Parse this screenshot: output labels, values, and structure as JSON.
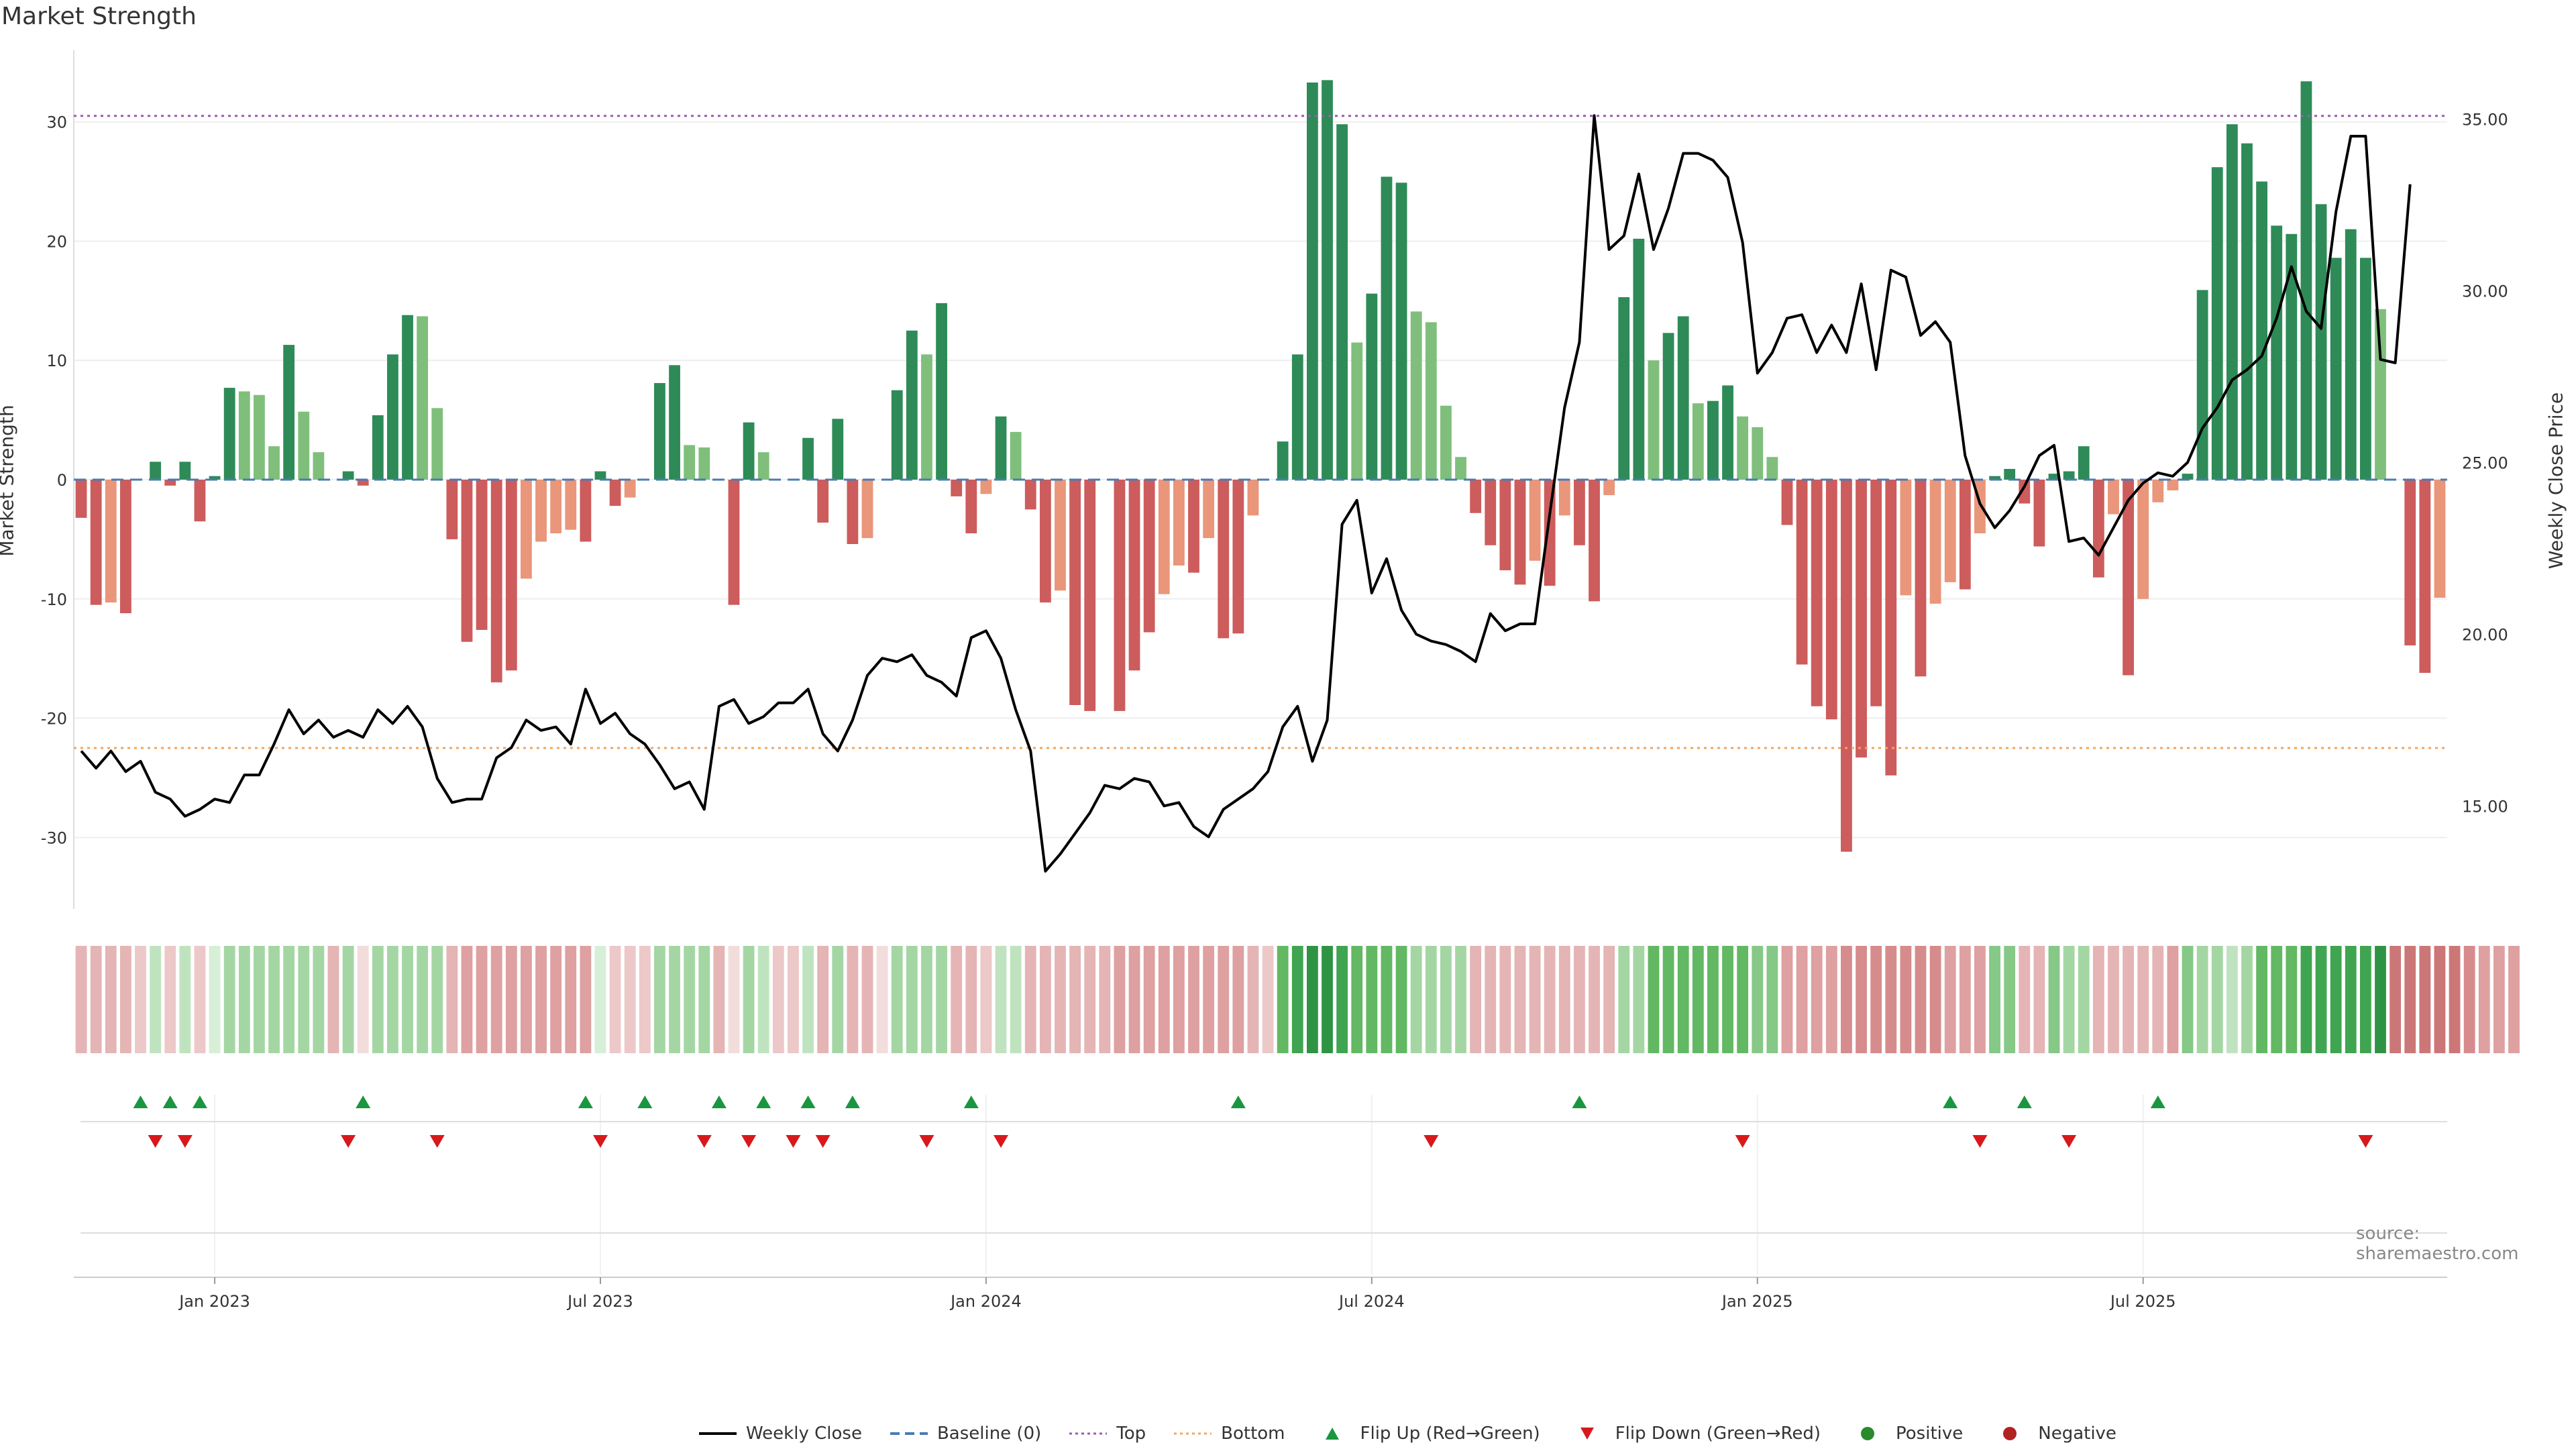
{
  "title": "Market Strength",
  "y_left_label": "Market Strength",
  "y_right_label": "Weekly Close Price",
  "source": "source: sharemaestro.com",
  "colors": {
    "strong_green": "#2e8b57",
    "light_green": "#7fbf7b",
    "strong_red": "#cd5c5c",
    "light_red": "#e9967a",
    "price": "#000000",
    "baseline": "#4a7bb5",
    "top": "#9b59b6",
    "bottom": "#f4a460",
    "flip_up": "#1a9641",
    "flip_down": "#d7191c",
    "positive": "#2b8a2b",
    "negative": "#b22222"
  },
  "legend": [
    {
      "label": "Weekly Close",
      "kind": "line",
      "color": "#000000"
    },
    {
      "label": "Baseline (0)",
      "kind": "dash",
      "color": "#4a7bb5"
    },
    {
      "label": "Top",
      "kind": "dot",
      "color": "#9b59b6"
    },
    {
      "label": "Bottom",
      "kind": "dot",
      "color": "#f4a460"
    },
    {
      "label": "Flip Up (Red→Green)",
      "kind": "tri-up",
      "color": "#1a9641"
    },
    {
      "label": "Flip Down (Green→Red)",
      "kind": "tri-down",
      "color": "#d7191c"
    },
    {
      "label": "Positive",
      "kind": "circle",
      "color": "#2b8a2b"
    },
    {
      "label": "Negative",
      "kind": "circle",
      "color": "#b22222"
    }
  ],
  "chart_data": {
    "type": "bar",
    "title": "Market Strength",
    "ylabel": "Market Strength",
    "y2label": "Weekly Close Price",
    "ylim": [
      -36,
      36
    ],
    "y2lim": [
      12,
      37
    ],
    "yticks": [
      -30,
      -20,
      -10,
      0,
      10,
      20,
      30
    ],
    "y2ticks": [
      "15.00",
      "20.00",
      "25.00",
      "30.00",
      "35.00"
    ],
    "top_level": 30.5,
    "bottom_level": -22.5,
    "x_ticks": [
      "Jan 2023",
      "Jul 2023",
      "Jan 2024",
      "Jul 2024",
      "Jan 2025",
      "Jul 2025"
    ],
    "x_tick_weeks": [
      9,
      35,
      61,
      87,
      113,
      139
    ],
    "strength": [
      -3.2,
      -10.5,
      -10.3,
      -11.2,
      0,
      1.5,
      -0.5,
      1.5,
      -3.5,
      0.3,
      7.7,
      7.4,
      7.1,
      2.8,
      11.3,
      5.7,
      2.3,
      0,
      0.7,
      -0.5,
      5.4,
      10.5,
      13.8,
      13.7,
      6.0,
      -5.0,
      -13.6,
      -12.6,
      -17.0,
      -16.0,
      -8.3,
      -5.2,
      -4.5,
      -4.2,
      -5.2,
      0.7,
      -2.2,
      -1.5,
      0,
      8.1,
      9.6,
      2.9,
      2.7,
      0,
      -10.5,
      4.8,
      2.3,
      0,
      0,
      3.5,
      -3.6,
      5.1,
      -5.4,
      -4.9,
      0,
      7.5,
      12.5,
      10.5,
      14.8,
      -1.4,
      -4.5,
      -1.2,
      5.3,
      4.0,
      -2.5,
      -10.3,
      -9.3,
      -18.9,
      -19.4,
      0,
      -19.4,
      -16.0,
      -12.8,
      -9.6,
      -7.2,
      -7.8,
      -4.9,
      -13.3,
      -12.9,
      -3.0,
      0,
      3.2,
      10.5,
      33.3,
      33.5,
      29.8,
      11.5,
      15.6,
      25.4,
      24.9,
      14.1,
      13.2,
      6.2,
      1.9,
      -2.8,
      -5.5,
      -7.6,
      -8.8,
      -6.8,
      -8.9,
      -3.0,
      -5.5,
      -10.2,
      -1.3,
      15.3,
      20.2,
      10.0,
      12.3,
      13.7,
      6.4,
      6.6,
      7.9,
      5.3,
      4.4,
      1.9,
      -3.8,
      -15.5,
      -19.0,
      -20.1,
      -31.2,
      -23.3,
      -19.0,
      -24.8,
      -9.7,
      -16.5,
      -10.4,
      -8.6,
      -9.2,
      -4.5,
      0.3,
      0.9,
      -2.0,
      -5.6,
      0.5,
      0.7,
      2.8,
      -8.2,
      -2.9,
      -16.4,
      -10.0,
      -1.9,
      -0.9,
      0.5,
      15.9,
      26.2,
      29.8,
      28.2,
      25.0,
      21.3,
      20.6,
      33.4,
      23.1,
      18.6,
      21.0,
      18.6,
      14.3,
      0,
      -13.9,
      -16.2,
      -9.9
    ],
    "weekly_close": [
      16.6,
      16.1,
      16.6,
      16.0,
      16.3,
      15.4,
      15.2,
      14.7,
      14.9,
      15.2,
      15.1,
      15.9,
      15.9,
      16.8,
      17.8,
      17.1,
      17.5,
      17.0,
      17.2,
      17.0,
      17.8,
      17.4,
      17.9,
      17.3,
      15.8,
      15.1,
      15.2,
      15.2,
      16.4,
      16.7,
      17.5,
      17.2,
      17.3,
      16.8,
      18.4,
      17.4,
      17.7,
      17.1,
      16.8,
      16.2,
      15.5,
      15.7,
      14.9,
      17.9,
      18.1,
      17.4,
      17.6,
      18.0,
      18.0,
      18.4,
      17.1,
      16.6,
      17.5,
      18.8,
      19.3,
      19.2,
      19.4,
      18.8,
      18.6,
      18.2,
      19.9,
      20.1,
      19.3,
      17.8,
      16.6,
      13.1,
      13.6,
      14.2,
      14.8,
      15.6,
      15.5,
      15.8,
      15.7,
      15.0,
      15.1,
      14.4,
      14.1,
      14.9,
      15.2,
      15.5,
      16.0,
      17.3,
      17.9,
      16.3,
      17.5,
      23.2,
      23.9,
      21.2,
      22.2,
      20.7,
      20.0,
      19.8,
      19.7,
      19.5,
      19.2,
      20.6,
      20.1,
      20.3,
      20.3,
      23.5,
      26.6,
      28.5,
      35.1,
      31.2,
      31.6,
      33.4,
      31.2,
      32.4,
      34.0,
      34.0,
      33.8,
      33.3,
      31.4,
      27.6,
      28.2,
      29.2,
      29.3,
      28.2,
      29.0,
      28.2,
      30.2,
      27.7,
      30.6,
      30.4,
      28.7,
      29.1,
      28.5,
      25.2,
      23.8,
      23.1,
      23.6,
      24.3,
      25.2,
      25.5,
      22.7,
      22.8,
      22.3,
      23.1,
      23.9,
      24.4,
      24.7,
      24.6,
      25.0,
      26.0,
      26.6,
      27.4,
      27.7,
      28.1,
      29.2,
      30.7,
      29.4,
      28.9,
      32.3,
      34.5,
      34.5,
      28.0,
      27.9,
      33.1
    ],
    "heat_intensity": [
      3,
      3,
      3,
      3,
      2,
      2,
      2,
      2,
      2,
      1,
      3,
      3,
      3,
      3,
      3,
      3,
      3,
      3,
      3,
      1,
      3,
      3,
      3,
      3,
      3,
      3,
      4,
      4,
      4,
      4,
      4,
      4,
      4,
      4,
      4,
      1,
      2,
      2,
      2,
      3,
      3,
      3,
      3,
      3,
      1,
      3,
      2,
      2,
      2,
      2,
      3,
      3,
      3,
      3,
      1,
      3,
      3,
      3,
      3,
      3,
      3,
      2,
      2,
      2,
      3,
      3,
      3,
      3,
      3,
      3,
      4,
      4,
      4,
      4,
      4,
      4,
      4,
      4,
      4,
      3,
      2,
      5,
      6,
      7,
      7,
      6,
      5,
      5,
      5,
      5,
      3,
      3,
      3,
      3,
      3,
      3,
      3,
      3,
      3,
      3,
      3,
      3,
      3,
      3,
      3,
      3,
      5,
      5,
      5,
      5,
      5,
      5,
      5,
      4,
      4,
      4,
      4,
      4,
      4,
      5,
      5,
      5,
      5,
      5,
      5,
      5,
      4,
      4,
      4,
      4,
      4,
      3,
      3,
      4,
      3,
      3,
      3,
      3,
      3,
      3,
      3,
      4,
      4,
      3,
      3,
      2,
      3,
      5,
      5,
      5,
      6,
      6,
      6,
      6,
      6,
      7,
      6,
      6,
      6,
      6,
      6,
      5,
      4,
      4,
      4
    ],
    "flip_up_weeks": [
      4,
      6,
      8,
      19,
      34,
      38,
      43,
      46,
      49,
      52,
      60,
      78,
      101,
      126,
      131,
      140
    ],
    "flip_down_weeks": [
      5,
      7,
      18,
      24,
      35,
      42,
      45,
      48,
      50,
      57,
      62,
      91,
      112,
      128,
      134,
      154
    ]
  }
}
